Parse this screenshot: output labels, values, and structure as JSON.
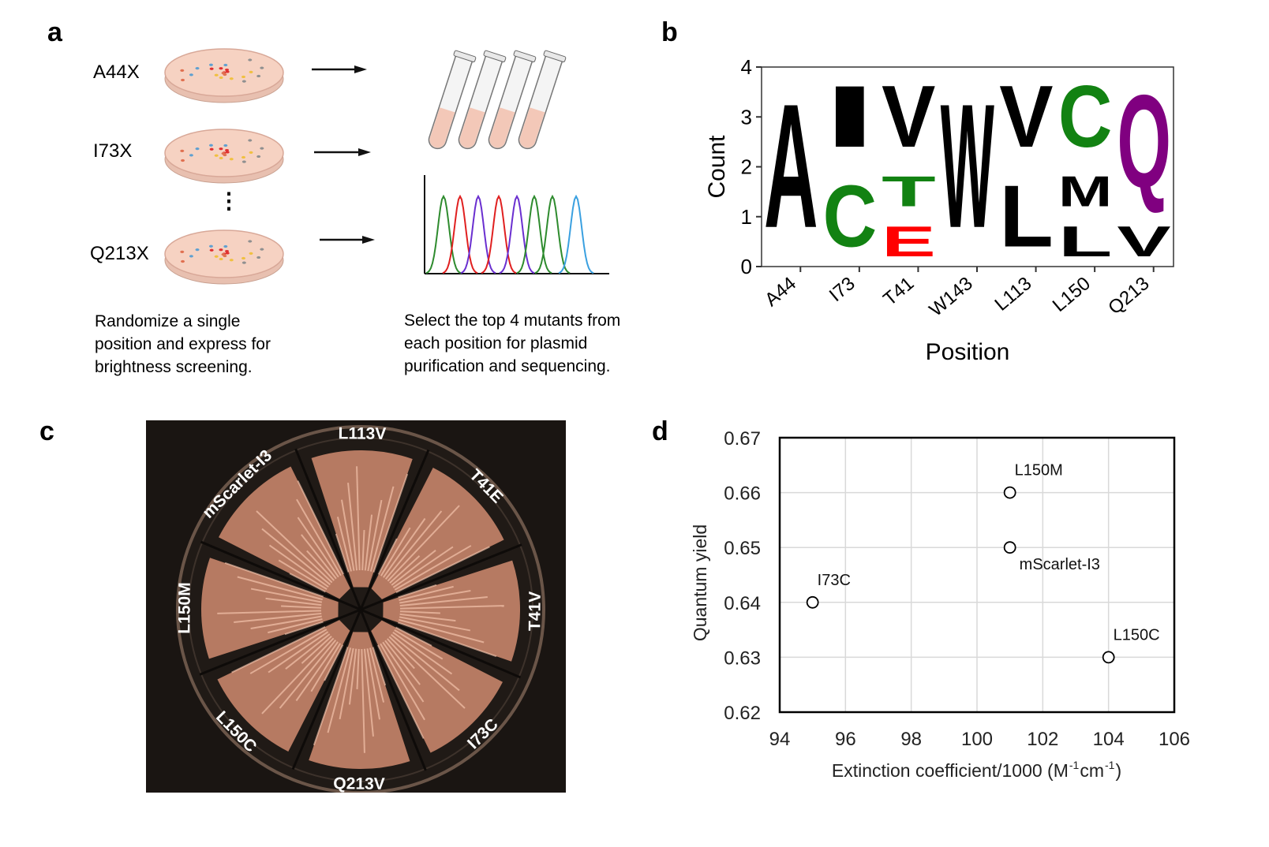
{
  "panel_labels": {
    "a": "a",
    "b": "b",
    "c": "c",
    "d": "d"
  },
  "panel_a": {
    "rows": [
      {
        "label": "A44X"
      },
      {
        "label": "I73X"
      },
      {
        "label": "Q213X"
      }
    ],
    "ellipsis": "⋮",
    "caption_left": [
      "Randomize a single",
      "position and express for",
      "brightness screening."
    ],
    "caption_right": [
      "Select the top 4 mutants from",
      "each position for plasmid",
      "purification and sequencing."
    ],
    "trace_colors": [
      "#2e8b2e",
      "#e02020",
      "#6a2fd0",
      "#e02020",
      "#6a2fd0",
      "#2e8b2e",
      "#2e8b2e",
      "#3aa0e0"
    ]
  },
  "panel_c": {
    "labels": [
      "L113V",
      "T41E",
      "T41V",
      "I73C",
      "Q213V",
      "L150C",
      "L150M",
      "mScarlet-I3"
    ],
    "colony_color": "#f0a080"
  },
  "chart_data": [
    {
      "type": "bar",
      "subtype": "sequence-logo",
      "title": "",
      "xlabel": "Position",
      "ylabel": "Count",
      "ylim": [
        0,
        4
      ],
      "yticks": [
        "0",
        "1",
        "2",
        "3",
        "4"
      ],
      "categories": [
        "A44",
        "I73",
        "T41",
        "W143",
        "L113",
        "L150",
        "Q213"
      ],
      "stacks": [
        [
          {
            "letter": "A",
            "count": 4,
            "color": "#000000"
          }
        ],
        [
          {
            "letter": "C",
            "count": 2,
            "color": "#128212"
          },
          {
            "letter": "I",
            "count": 2,
            "color": "#000000"
          }
        ],
        [
          {
            "letter": "E",
            "count": 1,
            "color": "#ff0000"
          },
          {
            "letter": "T",
            "count": 1,
            "color": "#128212"
          },
          {
            "letter": "V",
            "count": 2,
            "color": "#000000"
          }
        ],
        [
          {
            "letter": "W",
            "count": 4,
            "color": "#000000"
          }
        ],
        [
          {
            "letter": "L",
            "count": 2,
            "color": "#000000"
          },
          {
            "letter": "V",
            "count": 2,
            "color": "#000000"
          }
        ],
        [
          {
            "letter": "L",
            "count": 1,
            "color": "#000000"
          },
          {
            "letter": "M",
            "count": 1,
            "color": "#000000"
          },
          {
            "letter": "C",
            "count": 2,
            "color": "#128212"
          }
        ],
        [
          {
            "letter": "V",
            "count": 1,
            "color": "#000000"
          },
          {
            "letter": "Q",
            "count": 3,
            "color": "#800080"
          }
        ]
      ]
    },
    {
      "type": "scatter",
      "title": "",
      "xlabel": "Extinction coefficient/1000 (M",
      "xlabel_sup1": "-1",
      "xlabel_mid": " cm",
      "xlabel_sup2": "-1",
      "xlabel_end": ")",
      "ylabel": "Quantum yield",
      "xlim": [
        94,
        106
      ],
      "ylim": [
        0.62,
        0.67
      ],
      "xticks": [
        "94",
        "96",
        "98",
        "100",
        "102",
        "104",
        "106"
      ],
      "yticks": [
        "0.62",
        "0.63",
        "0.64",
        "0.65",
        "0.66",
        "0.67"
      ],
      "grid": true,
      "points": [
        {
          "label": "L150M",
          "x": 101,
          "y": 0.66,
          "label_pos": "above"
        },
        {
          "label": "mScarlet-I3",
          "x": 101,
          "y": 0.65,
          "label_pos": "below"
        },
        {
          "label": "I73C",
          "x": 95,
          "y": 0.64,
          "label_pos": "above"
        },
        {
          "label": "L150C",
          "x": 104,
          "y": 0.63,
          "label_pos": "above"
        }
      ]
    }
  ]
}
